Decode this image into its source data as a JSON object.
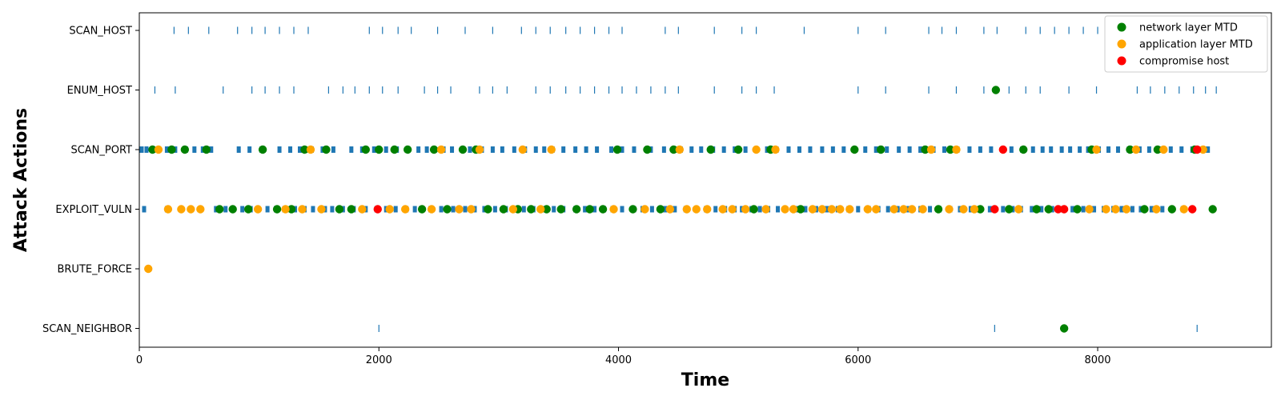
{
  "chart_data": {
    "type": "scatter",
    "title": "",
    "xlabel": "Time",
    "ylabel": "Attack Actions",
    "xlim": [
      0,
      9450
    ],
    "x_ticks": [
      0,
      2000,
      4000,
      6000,
      8000
    ],
    "categories": [
      "SCAN_HOST",
      "ENUM_HOST",
      "SCAN_PORT",
      "EXPLOIT_VULN",
      "BRUTE_FORCE",
      "SCAN_NEIGHBOR"
    ],
    "grid": false,
    "legend_position": "top-right",
    "event_marker_color": "#1f77b4",
    "events": {
      "SCAN_HOST": [
        290,
        410,
        580,
        820,
        940,
        1050,
        1170,
        1290,
        1410,
        1920,
        2030,
        2160,
        2270,
        2490,
        2720,
        2950,
        3190,
        3310,
        3430,
        3560,
        3680,
        3800,
        3920,
        4030,
        4390,
        4500,
        4800,
        5030,
        5150,
        5550,
        6000,
        6230,
        6590,
        6700,
        6820,
        7050,
        7160,
        7400,
        7520,
        7640,
        7760,
        7880,
        8000
      ],
      "ENUM_HOST": [
        130,
        300,
        700,
        940,
        1050,
        1170,
        1290,
        1580,
        1700,
        1800,
        1920,
        2030,
        2160,
        2380,
        2490,
        2600,
        2840,
        2950,
        3070,
        3310,
        3430,
        3560,
        3680,
        3800,
        3920,
        4030,
        4150,
        4270,
        4390,
        4500,
        4800,
        5030,
        5150,
        5300,
        6000,
        6230,
        6590,
        6820,
        7050,
        7260,
        7400,
        7520,
        7760,
        7990,
        8330,
        8440,
        8560,
        8680,
        8800,
        8900,
        8990
      ],
      "SCAN_PORT": [
        20,
        60,
        110,
        160,
        230,
        300,
        390,
        460,
        530,
        600,
        830,
        920,
        1020,
        1170,
        1260,
        1340,
        1440,
        1530,
        1620,
        1770,
        1860,
        1960,
        2060,
        2150,
        2240,
        2330,
        2400,
        2540,
        2610,
        2700,
        2760,
        2860,
        2950,
        3030,
        3130,
        3220,
        3310,
        3380,
        3450,
        3540,
        3640,
        3730,
        3820,
        3940,
        4030,
        4130,
        4270,
        4380,
        4470,
        4520,
        4610,
        4690,
        4790,
        4880,
        4970,
        5060,
        5150,
        5240,
        5320,
        5420,
        5510,
        5600,
        5700,
        5790,
        5880,
        5970,
        6060,
        6150,
        6240,
        6340,
        6430,
        6520,
        6630,
        6720,
        6830,
        6930,
        7020,
        7110,
        7210,
        7280,
        7370,
        7460,
        7540,
        7610,
        7700,
        7770,
        7850,
        7920,
        8010,
        8090,
        8170,
        8260,
        8350,
        8430,
        8520,
        8610,
        8700,
        8790,
        8860,
        8920
      ],
      "EXPLOIT_VULN": [
        40,
        230,
        640,
        720,
        780,
        860,
        930,
        990,
        1070,
        1140,
        1210,
        1300,
        1380,
        1450,
        1550,
        1610,
        1700,
        1790,
        1890,
        1980,
        2060,
        2140,
        2230,
        2300,
        2350,
        2430,
        2520,
        2620,
        2720,
        2800,
        2880,
        2970,
        3060,
        3150,
        3210,
        3290,
        3380,
        3460,
        3540,
        3640,
        3720,
        3800,
        3880,
        3950,
        4030,
        4130,
        4200,
        4280,
        4390,
        4470,
        4560,
        4650,
        4730,
        4810,
        4890,
        4970,
        5030,
        5110,
        5180,
        5250,
        5330,
        5390,
        5480,
        5560,
        5650,
        5740,
        5830,
        5920,
        6000,
        6090,
        6170,
        6250,
        6330,
        6420,
        6520,
        6600,
        6680,
        6770,
        6850,
        6940,
        7010,
        7100,
        7210,
        7290,
        7360,
        7450,
        7530,
        7620,
        7710,
        7790,
        7880,
        7970,
        8050,
        8130,
        8200,
        8290,
        8360,
        8450,
        8540,
        8620,
        8710,
        8790
      ],
      "SCAN_NEIGHBOR": [
        2000,
        7140,
        8830
      ]
    },
    "series": [
      {
        "name": "network layer MTD",
        "color": "#008000",
        "points": [
          {
            "x": 110,
            "y": "SCAN_PORT"
          },
          {
            "x": 270,
            "y": "SCAN_PORT"
          },
          {
            "x": 380,
            "y": "SCAN_PORT"
          },
          {
            "x": 560,
            "y": "SCAN_PORT"
          },
          {
            "x": 1030,
            "y": "SCAN_PORT"
          },
          {
            "x": 1380,
            "y": "SCAN_PORT"
          },
          {
            "x": 1560,
            "y": "SCAN_PORT"
          },
          {
            "x": 1890,
            "y": "SCAN_PORT"
          },
          {
            "x": 2000,
            "y": "SCAN_PORT"
          },
          {
            "x": 2130,
            "y": "SCAN_PORT"
          },
          {
            "x": 2240,
            "y": "SCAN_PORT"
          },
          {
            "x": 2460,
            "y": "SCAN_PORT"
          },
          {
            "x": 2700,
            "y": "SCAN_PORT"
          },
          {
            "x": 2810,
            "y": "SCAN_PORT"
          },
          {
            "x": 3990,
            "y": "SCAN_PORT"
          },
          {
            "x": 4240,
            "y": "SCAN_PORT"
          },
          {
            "x": 4460,
            "y": "SCAN_PORT"
          },
          {
            "x": 4770,
            "y": "SCAN_PORT"
          },
          {
            "x": 5000,
            "y": "SCAN_PORT"
          },
          {
            "x": 5270,
            "y": "SCAN_PORT"
          },
          {
            "x": 5970,
            "y": "SCAN_PORT"
          },
          {
            "x": 6190,
            "y": "SCAN_PORT"
          },
          {
            "x": 6560,
            "y": "SCAN_PORT"
          },
          {
            "x": 6770,
            "y": "SCAN_PORT"
          },
          {
            "x": 7380,
            "y": "SCAN_PORT"
          },
          {
            "x": 7950,
            "y": "SCAN_PORT"
          },
          {
            "x": 8270,
            "y": "SCAN_PORT"
          },
          {
            "x": 8500,
            "y": "SCAN_PORT"
          },
          {
            "x": 8810,
            "y": "SCAN_PORT"
          },
          {
            "x": 670,
            "y": "EXPLOIT_VULN"
          },
          {
            "x": 780,
            "y": "EXPLOIT_VULN"
          },
          {
            "x": 910,
            "y": "EXPLOIT_VULN"
          },
          {
            "x": 1150,
            "y": "EXPLOIT_VULN"
          },
          {
            "x": 1270,
            "y": "EXPLOIT_VULN"
          },
          {
            "x": 1670,
            "y": "EXPLOIT_VULN"
          },
          {
            "x": 1770,
            "y": "EXPLOIT_VULN"
          },
          {
            "x": 2360,
            "y": "EXPLOIT_VULN"
          },
          {
            "x": 2570,
            "y": "EXPLOIT_VULN"
          },
          {
            "x": 2910,
            "y": "EXPLOIT_VULN"
          },
          {
            "x": 3040,
            "y": "EXPLOIT_VULN"
          },
          {
            "x": 3160,
            "y": "EXPLOIT_VULN"
          },
          {
            "x": 3270,
            "y": "EXPLOIT_VULN"
          },
          {
            "x": 3400,
            "y": "EXPLOIT_VULN"
          },
          {
            "x": 3520,
            "y": "EXPLOIT_VULN"
          },
          {
            "x": 3650,
            "y": "EXPLOIT_VULN"
          },
          {
            "x": 3760,
            "y": "EXPLOIT_VULN"
          },
          {
            "x": 3870,
            "y": "EXPLOIT_VULN"
          },
          {
            "x": 4120,
            "y": "EXPLOIT_VULN"
          },
          {
            "x": 4350,
            "y": "EXPLOIT_VULN"
          },
          {
            "x": 5130,
            "y": "EXPLOIT_VULN"
          },
          {
            "x": 5520,
            "y": "EXPLOIT_VULN"
          },
          {
            "x": 6670,
            "y": "EXPLOIT_VULN"
          },
          {
            "x": 7020,
            "y": "EXPLOIT_VULN"
          },
          {
            "x": 7260,
            "y": "EXPLOIT_VULN"
          },
          {
            "x": 7490,
            "y": "EXPLOIT_VULN"
          },
          {
            "x": 7590,
            "y": "EXPLOIT_VULN"
          },
          {
            "x": 7830,
            "y": "EXPLOIT_VULN"
          },
          {
            "x": 8390,
            "y": "EXPLOIT_VULN"
          },
          {
            "x": 8620,
            "y": "EXPLOIT_VULN"
          },
          {
            "x": 8960,
            "y": "EXPLOIT_VULN"
          },
          {
            "x": 7150,
            "y": "ENUM_HOST"
          },
          {
            "x": 7720,
            "y": "SCAN_NEIGHBOR"
          }
        ]
      },
      {
        "name": "application layer MTD",
        "color": "#ffa500",
        "points": [
          {
            "x": 160,
            "y": "SCAN_PORT"
          },
          {
            "x": 1430,
            "y": "SCAN_PORT"
          },
          {
            "x": 2520,
            "y": "SCAN_PORT"
          },
          {
            "x": 2840,
            "y": "SCAN_PORT"
          },
          {
            "x": 3200,
            "y": "SCAN_PORT"
          },
          {
            "x": 3440,
            "y": "SCAN_PORT"
          },
          {
            "x": 4510,
            "y": "SCAN_PORT"
          },
          {
            "x": 5150,
            "y": "SCAN_PORT"
          },
          {
            "x": 5310,
            "y": "SCAN_PORT"
          },
          {
            "x": 6610,
            "y": "SCAN_PORT"
          },
          {
            "x": 6820,
            "y": "SCAN_PORT"
          },
          {
            "x": 7990,
            "y": "SCAN_PORT"
          },
          {
            "x": 8320,
            "y": "SCAN_PORT"
          },
          {
            "x": 8550,
            "y": "SCAN_PORT"
          },
          {
            "x": 8880,
            "y": "SCAN_PORT"
          },
          {
            "x": 240,
            "y": "EXPLOIT_VULN"
          },
          {
            "x": 350,
            "y": "EXPLOIT_VULN"
          },
          {
            "x": 430,
            "y": "EXPLOIT_VULN"
          },
          {
            "x": 510,
            "y": "EXPLOIT_VULN"
          },
          {
            "x": 990,
            "y": "EXPLOIT_VULN"
          },
          {
            "x": 1220,
            "y": "EXPLOIT_VULN"
          },
          {
            "x": 1360,
            "y": "EXPLOIT_VULN"
          },
          {
            "x": 1520,
            "y": "EXPLOIT_VULN"
          },
          {
            "x": 1860,
            "y": "EXPLOIT_VULN"
          },
          {
            "x": 2090,
            "y": "EXPLOIT_VULN"
          },
          {
            "x": 2220,
            "y": "EXPLOIT_VULN"
          },
          {
            "x": 2440,
            "y": "EXPLOIT_VULN"
          },
          {
            "x": 2670,
            "y": "EXPLOIT_VULN"
          },
          {
            "x": 2770,
            "y": "EXPLOIT_VULN"
          },
          {
            "x": 3120,
            "y": "EXPLOIT_VULN"
          },
          {
            "x": 3350,
            "y": "EXPLOIT_VULN"
          },
          {
            "x": 3960,
            "y": "EXPLOIT_VULN"
          },
          {
            "x": 4220,
            "y": "EXPLOIT_VULN"
          },
          {
            "x": 4430,
            "y": "EXPLOIT_VULN"
          },
          {
            "x": 4570,
            "y": "EXPLOIT_VULN"
          },
          {
            "x": 4650,
            "y": "EXPLOIT_VULN"
          },
          {
            "x": 4740,
            "y": "EXPLOIT_VULN"
          },
          {
            "x": 4870,
            "y": "EXPLOIT_VULN"
          },
          {
            "x": 4950,
            "y": "EXPLOIT_VULN"
          },
          {
            "x": 5060,
            "y": "EXPLOIT_VULN"
          },
          {
            "x": 5230,
            "y": "EXPLOIT_VULN"
          },
          {
            "x": 5390,
            "y": "EXPLOIT_VULN"
          },
          {
            "x": 5460,
            "y": "EXPLOIT_VULN"
          },
          {
            "x": 5620,
            "y": "EXPLOIT_VULN"
          },
          {
            "x": 5700,
            "y": "EXPLOIT_VULN"
          },
          {
            "x": 5780,
            "y": "EXPLOIT_VULN"
          },
          {
            "x": 5850,
            "y": "EXPLOIT_VULN"
          },
          {
            "x": 5930,
            "y": "EXPLOIT_VULN"
          },
          {
            "x": 6080,
            "y": "EXPLOIT_VULN"
          },
          {
            "x": 6150,
            "y": "EXPLOIT_VULN"
          },
          {
            "x": 6300,
            "y": "EXPLOIT_VULN"
          },
          {
            "x": 6380,
            "y": "EXPLOIT_VULN"
          },
          {
            "x": 6450,
            "y": "EXPLOIT_VULN"
          },
          {
            "x": 6540,
            "y": "EXPLOIT_VULN"
          },
          {
            "x": 6760,
            "y": "EXPLOIT_VULN"
          },
          {
            "x": 6880,
            "y": "EXPLOIT_VULN"
          },
          {
            "x": 6970,
            "y": "EXPLOIT_VULN"
          },
          {
            "x": 7340,
            "y": "EXPLOIT_VULN"
          },
          {
            "x": 7930,
            "y": "EXPLOIT_VULN"
          },
          {
            "x": 8070,
            "y": "EXPLOIT_VULN"
          },
          {
            "x": 8150,
            "y": "EXPLOIT_VULN"
          },
          {
            "x": 8240,
            "y": "EXPLOIT_VULN"
          },
          {
            "x": 8490,
            "y": "EXPLOIT_VULN"
          },
          {
            "x": 8720,
            "y": "EXPLOIT_VULN"
          },
          {
            "x": 75,
            "y": "BRUTE_FORCE"
          }
        ]
      },
      {
        "name": "compromise host",
        "color": "#ff0000",
        "points": [
          {
            "x": 7210,
            "y": "SCAN_PORT"
          },
          {
            "x": 8830,
            "y": "SCAN_PORT"
          },
          {
            "x": 1990,
            "y": "EXPLOIT_VULN"
          },
          {
            "x": 7140,
            "y": "EXPLOIT_VULN"
          },
          {
            "x": 7670,
            "y": "EXPLOIT_VULN"
          },
          {
            "x": 7720,
            "y": "EXPLOIT_VULN"
          },
          {
            "x": 8790,
            "y": "EXPLOIT_VULN"
          }
        ]
      }
    ]
  }
}
